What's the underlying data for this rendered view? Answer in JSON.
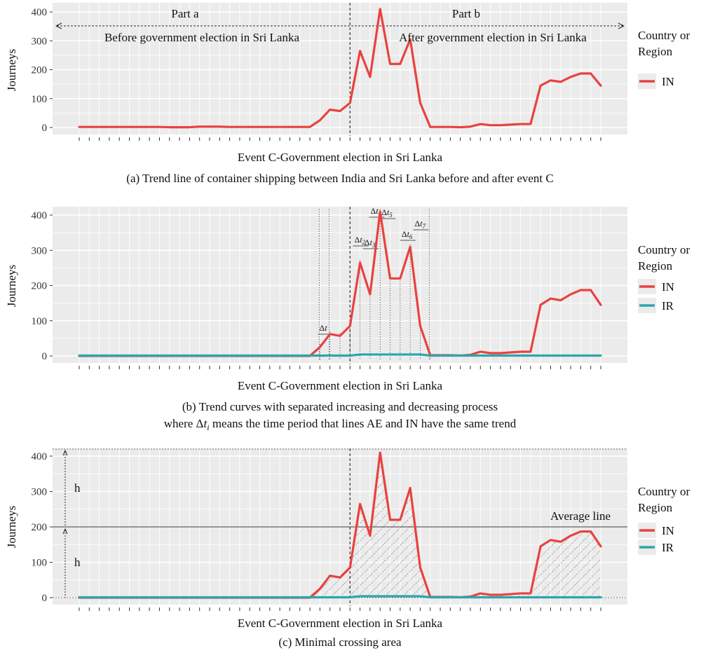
{
  "chart_data": [
    {
      "type": "line",
      "xlabel": "Event C-Government election in Sri Lanka",
      "caption": "(a) Trend line of container shipping between India and Sri Lanka before and after event C",
      "ylabel": "Journeys",
      "yticks": [
        "0",
        "100",
        "200",
        "300",
        "400"
      ],
      "ylim": [
        0,
        420
      ],
      "legend": {
        "title_line1": "Country or",
        "title_line2": "Region",
        "position": "right"
      },
      "annotations": {
        "part_a": "Part a",
        "part_b": "Part b",
        "before": "Before government election in Sri Lanka",
        "after": "After government election in Sri Lanka"
      },
      "event_index": 27,
      "series": [
        {
          "name": "IN",
          "color": "#e8423f",
          "values": [
            2,
            2,
            2,
            2,
            2,
            2,
            2,
            2,
            2,
            1,
            1,
            1,
            3,
            3,
            3,
            2,
            2,
            2,
            2,
            2,
            2,
            2,
            2,
            2,
            25,
            62,
            57,
            85,
            265,
            175,
            410,
            220,
            220,
            305,
            85,
            2,
            2,
            2,
            1,
            3,
            12,
            8,
            8,
            10,
            12,
            12,
            145,
            163,
            158,
            175,
            187,
            187,
            145
          ]
        }
      ]
    },
    {
      "type": "line",
      "xlabel": "Event C-Government election in Sri Lanka",
      "caption_line1": "(b) Trend curves with separated increasing and decreasing process",
      "caption_line2_pre": "where Δ",
      "caption_line2_t": "t",
      "caption_line2_i": "i",
      "caption_line2_post": " means the time period that lines AE and IN have the same trend",
      "ylabel": "Journeys",
      "yticks": [
        "0",
        "100",
        "200",
        "300",
        "400"
      ],
      "ylim": [
        0,
        420
      ],
      "legend": {
        "title_line1": "Country or",
        "title_line2": "Region",
        "position": "right"
      },
      "delta_labels": [
        {
          "d": "Δ",
          "t": "t",
          "sub": ""
        },
        {
          "d": "Δ",
          "t": "t",
          "sub": "2"
        },
        {
          "d": "Δ",
          "t": "t",
          "sub": "3"
        },
        {
          "d": "Δ",
          "t": "t",
          "sub": "4"
        },
        {
          "d": "Δ",
          "t": "t",
          "sub": "5"
        },
        {
          "d": "Δ",
          "t": "t",
          "sub": "6"
        },
        {
          "d": "Δ",
          "t": "t",
          "sub": "7"
        }
      ],
      "event_index": 27,
      "series": [
        {
          "name": "IN",
          "color": "#e8423f",
          "values": [
            0,
            0,
            0,
            0,
            0,
            0,
            0,
            0,
            0,
            0,
            0,
            0,
            0,
            0,
            0,
            0,
            0,
            0,
            0,
            0,
            0,
            0,
            0,
            0,
            25,
            62,
            57,
            85,
            265,
            175,
            410,
            220,
            220,
            310,
            85,
            2,
            2,
            2,
            1,
            3,
            12,
            8,
            8,
            10,
            12,
            12,
            145,
            163,
            158,
            175,
            187,
            187,
            145
          ]
        },
        {
          "name": "IR",
          "color": "#2ea5ad",
          "values": [
            1,
            1,
            1,
            1,
            1,
            1,
            1,
            1,
            1,
            1,
            1,
            1,
            1,
            1,
            1,
            1,
            1,
            1,
            1,
            1,
            1,
            1,
            1,
            1,
            1,
            1,
            1,
            1,
            4,
            4,
            4,
            4,
            4,
            4,
            4,
            1,
            1,
            1,
            1,
            1,
            1,
            1,
            1,
            1,
            1,
            1,
            1,
            1,
            1,
            1,
            1,
            1,
            1
          ]
        }
      ]
    },
    {
      "type": "line",
      "xlabel": "Event C-Government election in Sri Lanka",
      "caption": "(c) Minimal crossing area",
      "ylabel": "Journeys",
      "yticks": [
        "0",
        "100",
        "200",
        "300",
        "400"
      ],
      "ylim": [
        0,
        420
      ],
      "legend": {
        "title_line1": "Country or",
        "title_line2": "Region",
        "position": "right"
      },
      "average_line_label": "Average line",
      "average_value": 200,
      "h_label": "h",
      "event_index": 27,
      "series": [
        {
          "name": "IN",
          "color": "#e8423f",
          "values": [
            0,
            0,
            0,
            0,
            0,
            0,
            0,
            0,
            0,
            0,
            0,
            0,
            0,
            0,
            0,
            0,
            0,
            0,
            0,
            0,
            0,
            0,
            0,
            0,
            25,
            62,
            57,
            85,
            265,
            175,
            410,
            220,
            220,
            310,
            85,
            2,
            2,
            2,
            1,
            3,
            12,
            8,
            8,
            10,
            12,
            12,
            145,
            163,
            158,
            175,
            187,
            187,
            145
          ]
        },
        {
          "name": "IR",
          "color": "#2ea5ad",
          "values": [
            1,
            1,
            1,
            1,
            1,
            1,
            1,
            1,
            1,
            1,
            1,
            1,
            1,
            1,
            1,
            1,
            1,
            1,
            1,
            1,
            1,
            1,
            1,
            1,
            1,
            1,
            1,
            1,
            4,
            4,
            4,
            4,
            4,
            4,
            4,
            1,
            1,
            1,
            1,
            1,
            1,
            1,
            1,
            1,
            1,
            1,
            1,
            1,
            1,
            1,
            1,
            1,
            1
          ]
        }
      ]
    }
  ]
}
